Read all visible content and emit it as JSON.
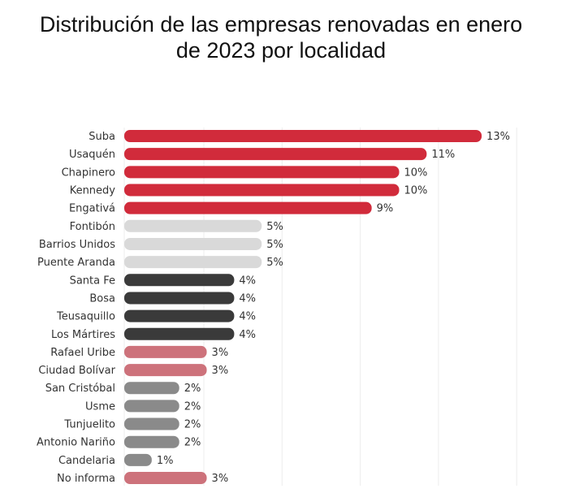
{
  "chart_data": {
    "type": "bar",
    "orientation": "horizontal",
    "title_lines": [
      "Distribución de las empresas renovadas en enero",
      "de 2023 por localidad"
    ],
    "categories": [
      "Suba",
      "Usaquén",
      "Chapinero",
      "Kennedy",
      "Engativá",
      "Fontibón",
      "Barrios Unidos",
      "Puente Aranda",
      "Santa Fe",
      "Bosa",
      "Teusaquillo",
      "Los Mártires",
      "Rafael Uribe",
      "Ciudad Bolívar",
      "San Cristóbal",
      "Usme",
      "Tunjuelito",
      "Antonio Nariño",
      "Candelaria",
      "No informa"
    ],
    "values": [
      13,
      11,
      10,
      10,
      9,
      5,
      5,
      5,
      4,
      4,
      4,
      4,
      3,
      3,
      2,
      2,
      2,
      2,
      1,
      3
    ],
    "data_labels": [
      "13%",
      "11%",
      "10%",
      "10%",
      "9%",
      "5%",
      "5%",
      "5%",
      "4%",
      "4%",
      "4%",
      "4%",
      "3%",
      "3%",
      "2%",
      "2%",
      "2%",
      "2%",
      "1%",
      "3%"
    ],
    "colors": [
      "#d12b3b",
      "#d12b3b",
      "#d12b3b",
      "#d12b3b",
      "#d12b3b",
      "#d9d9d9",
      "#d9d9d9",
      "#d9d9d9",
      "#3a3a3a",
      "#3a3a3a",
      "#3a3a3a",
      "#3a3a3a",
      "#cd727b",
      "#cd727b",
      "#8a8a8a",
      "#8a8a8a",
      "#8a8a8a",
      "#8a8a8a",
      "#8a8a8a",
      "#cd727b"
    ],
    "unit": "%",
    "xlim": [
      0,
      15
    ],
    "grid": true,
    "legend": "none"
  }
}
